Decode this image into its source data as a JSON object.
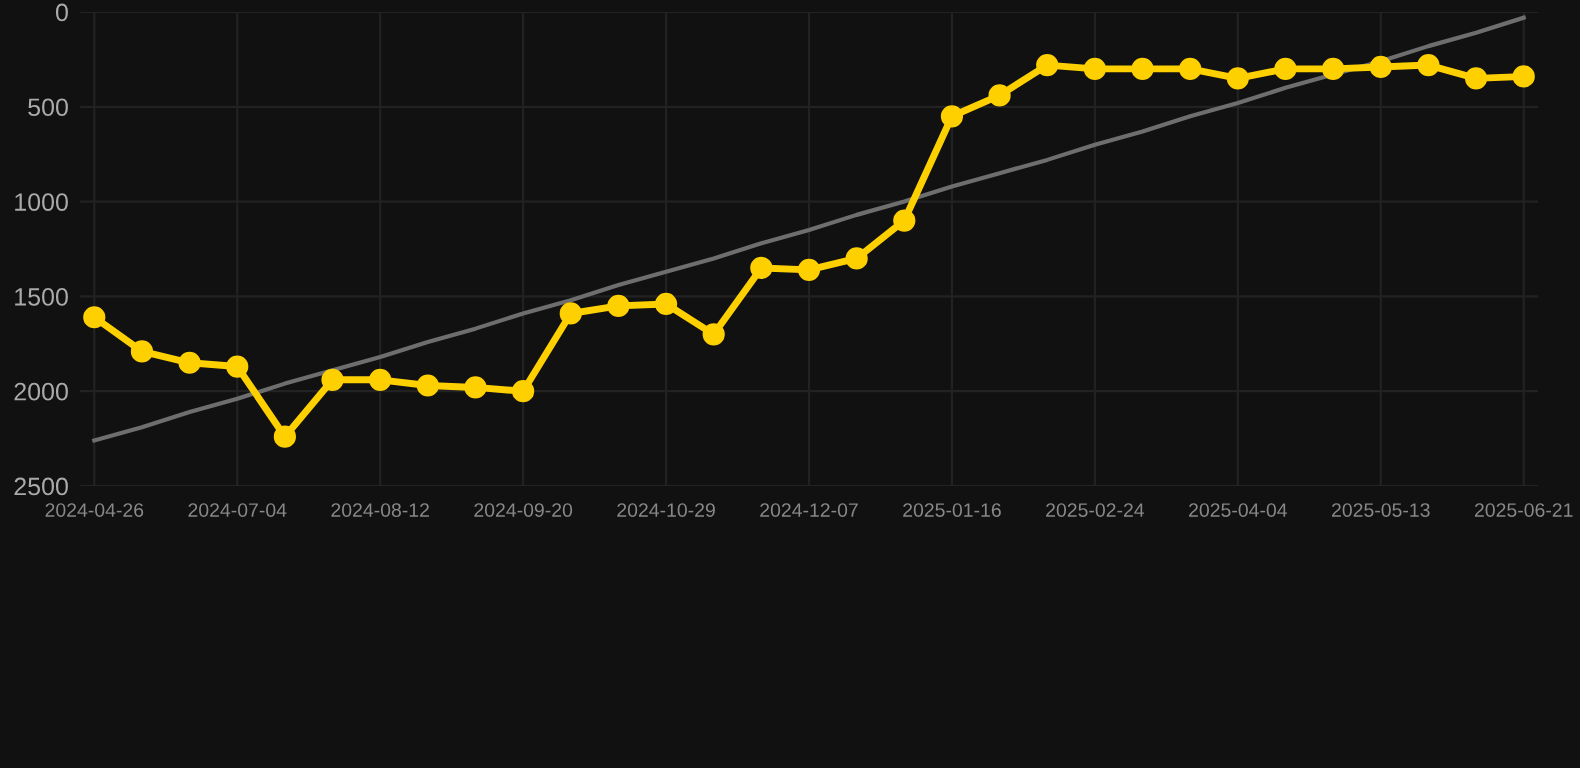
{
  "chart_data": {
    "type": "line",
    "categories": [
      "2024-04-26",
      null,
      null,
      "2024-07-04",
      null,
      null,
      "2024-08-12",
      null,
      null,
      "2024-09-20",
      null,
      null,
      "2024-10-29",
      null,
      null,
      "2024-12-07",
      null,
      null,
      "2025-01-16",
      null,
      null,
      "2025-02-24",
      null,
      null,
      "2025-04-04",
      null,
      null,
      "2025-05-13",
      null,
      null,
      "2025-06-21"
    ],
    "series": [
      {
        "color": "#ffd000",
        "marker": "circle",
        "values": [
          1610,
          1790,
          1850,
          1870,
          2240,
          1940,
          1940,
          1970,
          1980,
          2000,
          1590,
          1550,
          1540,
          1700,
          1350,
          1360,
          1300,
          1100,
          550,
          440,
          280,
          300,
          300,
          300,
          350,
          300,
          300,
          290,
          280,
          350,
          340
        ]
      },
      {
        "type": "line",
        "color": "#6e6e6e",
        "marker": "none",
        "values": [
          2260,
          2190,
          2110,
          2040,
          1960,
          1890,
          1820,
          1740,
          1670,
          1590,
          1520,
          1440,
          1370,
          1300,
          1220,
          1150,
          1070,
          1000,
          920,
          850,
          780,
          700,
          630,
          550,
          480,
          400,
          330,
          260,
          180,
          110,
          30
        ]
      }
    ],
    "ylim": [
      2500,
      0
    ],
    "yticks": [
      0,
      500,
      1000,
      1500,
      2000,
      2500
    ],
    "grid": true
  }
}
